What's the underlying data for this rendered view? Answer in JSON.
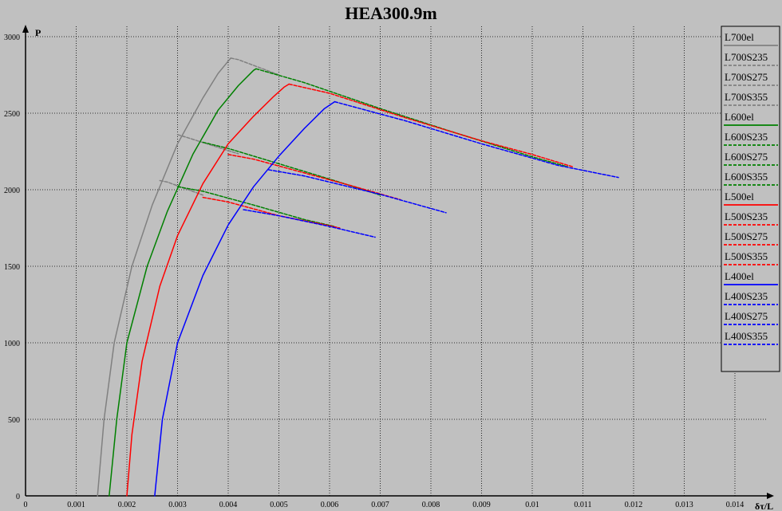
{
  "chart_data": {
    "type": "line",
    "title": "HEA300.9m",
    "xlabel": "δτ/L",
    "ylabel": "P",
    "xlim": [
      0,
      0.0145
    ],
    "ylim": [
      0,
      3000
    ],
    "x_ticks": [
      0,
      0.001,
      0.002,
      0.003,
      0.004,
      0.005,
      0.006,
      0.007,
      0.008,
      0.009,
      0.01,
      0.011,
      0.012,
      0.013,
      0.014
    ],
    "x_tick_labels": [
      "0",
      "0.001",
      "0.002",
      "0.003",
      "0.004",
      "0.005",
      "0.006",
      "0.007",
      "0.008",
      "0.009",
      "0.01",
      "0.011",
      "0.012",
      "0.013",
      "0.014"
    ],
    "y_ticks": [
      0,
      500,
      1000,
      1500,
      2000,
      2500,
      3000
    ],
    "y_tick_labels": [
      "0",
      "500",
      "1000",
      "1500",
      "2000",
      "2500",
      "3000"
    ],
    "grid": true,
    "legend_position": "right",
    "series": [
      {
        "name": "L700el",
        "color": "#808080",
        "dashed": false,
        "x": [
          0.00142,
          0.00155,
          0.00175,
          0.0021,
          0.0025,
          0.003,
          0.0035,
          0.0038,
          0.004,
          0.00405
        ],
        "y": [
          0,
          500,
          1000,
          1500,
          1900,
          2300,
          2600,
          2760,
          2840,
          2860
        ]
      },
      {
        "name": "L700S235",
        "color": "#808080",
        "dashed": true,
        "x": [
          0.00265,
          0.0028,
          0.0035
        ],
        "y": [
          2060,
          2050,
          1965
        ]
      },
      {
        "name": "L700S275",
        "color": "#808080",
        "dashed": true,
        "x": [
          0.003,
          0.0032,
          0.0042
        ],
        "y": [
          2360,
          2340,
          2235
        ]
      },
      {
        "name": "L700S355",
        "color": "#808080",
        "dashed": true,
        "x": [
          0.00405,
          0.0042,
          0.005
        ],
        "y": [
          2860,
          2850,
          2750
        ]
      },
      {
        "name": "L600el",
        "color": "#008000",
        "dashed": false,
        "x": [
          0.00165,
          0.0018,
          0.002,
          0.0024,
          0.0028,
          0.0033,
          0.0038,
          0.0042,
          0.0045,
          0.00455
        ],
        "y": [
          0,
          500,
          1000,
          1500,
          1860,
          2230,
          2520,
          2680,
          2780,
          2790
        ]
      },
      {
        "name": "L600S235",
        "color": "#008000",
        "dashed": true,
        "x": [
          0.003,
          0.0035,
          0.0045,
          0.0055,
          0.0061
        ],
        "y": [
          2020,
          1990,
          1900,
          1805,
          1760
        ]
      },
      {
        "name": "L600S275",
        "color": "#008000",
        "dashed": true,
        "x": [
          0.0035,
          0.004,
          0.005,
          0.006,
          0.007
        ],
        "y": [
          2310,
          2270,
          2170,
          2070,
          1965
        ]
      },
      {
        "name": "L600S355",
        "color": "#008000",
        "dashed": true,
        "x": [
          0.00455,
          0.0055,
          0.007,
          0.0085,
          0.01,
          0.0107
        ],
        "y": [
          2790,
          2700,
          2530,
          2370,
          2215,
          2150
        ]
      },
      {
        "name": "L500el",
        "color": "#ff0000",
        "dashed": false,
        "x": [
          0.002,
          0.0021,
          0.0023,
          0.00265,
          0.003,
          0.0035,
          0.004,
          0.0045,
          0.0049,
          0.0051,
          0.0052
        ],
        "y": [
          0,
          400,
          880,
          1370,
          1700,
          2040,
          2300,
          2480,
          2610,
          2670,
          2690
        ]
      },
      {
        "name": "L500S235",
        "color": "#ff0000",
        "dashed": true,
        "x": [
          0.0035,
          0.004,
          0.005,
          0.006,
          0.0062
        ],
        "y": [
          1950,
          1920,
          1830,
          1765,
          1750
        ]
      },
      {
        "name": "L500S275",
        "color": "#ff0000",
        "dashed": true,
        "x": [
          0.004,
          0.0045,
          0.0055,
          0.0065,
          0.0074
        ],
        "y": [
          2230,
          2200,
          2110,
          2020,
          1935
        ]
      },
      {
        "name": "L500S355",
        "color": "#ff0000",
        "dashed": true,
        "x": [
          0.0052,
          0.006,
          0.0075,
          0.009,
          0.01,
          0.0108
        ],
        "y": [
          2690,
          2630,
          2470,
          2320,
          2230,
          2150
        ]
      },
      {
        "name": "L400el",
        "color": "#0000ff",
        "dashed": false,
        "x": [
          0.00255,
          0.0027,
          0.003,
          0.0035,
          0.004,
          0.0045,
          0.005,
          0.0055,
          0.0059,
          0.0061
        ],
        "y": [
          0,
          500,
          1000,
          1440,
          1770,
          2020,
          2220,
          2400,
          2530,
          2575
        ]
      },
      {
        "name": "L400S235",
        "color": "#0000ff",
        "dashed": true,
        "x": [
          0.0043,
          0.005,
          0.006,
          0.0069
        ],
        "y": [
          1870,
          1830,
          1760,
          1690
        ]
      },
      {
        "name": "L400S275",
        "color": "#0000ff",
        "dashed": true,
        "x": [
          0.0048,
          0.0055,
          0.007,
          0.0083
        ],
        "y": [
          2130,
          2090,
          1970,
          1850
        ]
      },
      {
        "name": "L400S355",
        "color": "#0000ff",
        "dashed": true,
        "x": [
          0.0061,
          0.0075,
          0.009,
          0.0105,
          0.0117
        ],
        "y": [
          2575,
          2450,
          2300,
          2160,
          2080
        ]
      }
    ]
  }
}
